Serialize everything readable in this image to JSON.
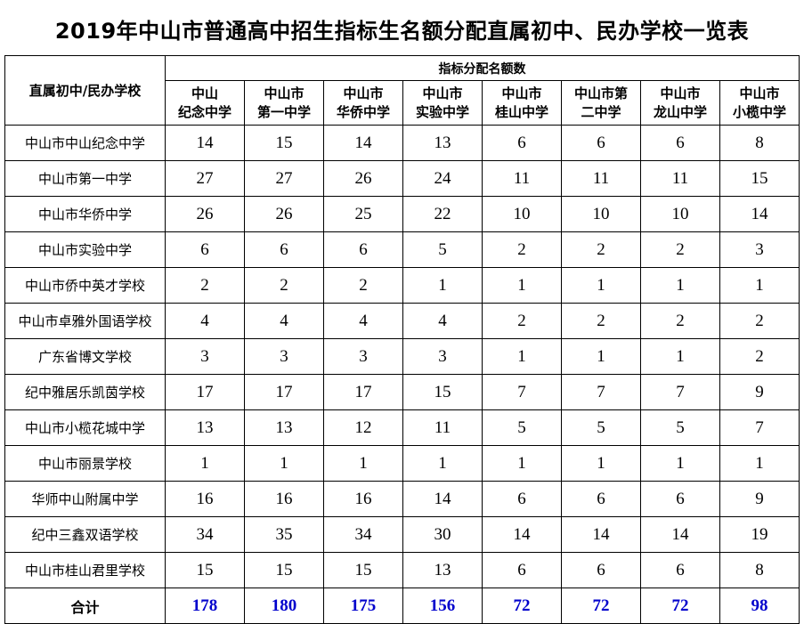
{
  "title": "2019年中山市普通高中招生指标生名额分配直属初中、民办学校一览表",
  "table": {
    "corner_header": "直属初中/民办学校",
    "group_header": "指标分配名额数",
    "columns": [
      {
        "line1": "中山",
        "line2": "纪念中学"
      },
      {
        "line1": "中山市",
        "line2": "第一中学"
      },
      {
        "line1": "中山市",
        "line2": "华侨中学"
      },
      {
        "line1": "中山市",
        "line2": "实验中学"
      },
      {
        "line1": "中山市",
        "line2": "桂山中学"
      },
      {
        "line1": "中山市第",
        "line2": "二中学"
      },
      {
        "line1": "中山市",
        "line2": "龙山中学"
      },
      {
        "line1": "中山市",
        "line2": "小榄中学"
      }
    ],
    "rows": [
      {
        "school": "中山市中山纪念中学",
        "values": [
          14,
          15,
          14,
          13,
          6,
          6,
          6,
          8
        ]
      },
      {
        "school": "中山市第一中学",
        "values": [
          27,
          27,
          26,
          24,
          11,
          11,
          11,
          15
        ]
      },
      {
        "school": "中山市华侨中学",
        "values": [
          26,
          26,
          25,
          22,
          10,
          10,
          10,
          14
        ]
      },
      {
        "school": "中山市实验中学",
        "values": [
          6,
          6,
          6,
          5,
          2,
          2,
          2,
          3
        ]
      },
      {
        "school": "中山市侨中英才学校",
        "values": [
          2,
          2,
          2,
          1,
          1,
          1,
          1,
          1
        ]
      },
      {
        "school": "中山市卓雅外国语学校",
        "values": [
          4,
          4,
          4,
          4,
          2,
          2,
          2,
          2
        ]
      },
      {
        "school": "广东省博文学校",
        "values": [
          3,
          3,
          3,
          3,
          1,
          1,
          1,
          2
        ]
      },
      {
        "school": "纪中雅居乐凯茵学校",
        "values": [
          17,
          17,
          17,
          15,
          7,
          7,
          7,
          9
        ]
      },
      {
        "school": "中山市小榄花城中学",
        "values": [
          13,
          13,
          12,
          11,
          5,
          5,
          5,
          7
        ]
      },
      {
        "school": "中山市丽景学校",
        "values": [
          1,
          1,
          1,
          1,
          1,
          1,
          1,
          1
        ]
      },
      {
        "school": "华师中山附属中学",
        "values": [
          16,
          16,
          16,
          14,
          6,
          6,
          6,
          9
        ]
      },
      {
        "school": "纪中三鑫双语学校",
        "values": [
          34,
          35,
          34,
          30,
          14,
          14,
          14,
          19
        ]
      },
      {
        "school": "中山市桂山君里学校",
        "values": [
          15,
          15,
          15,
          13,
          6,
          6,
          6,
          8
        ]
      }
    ],
    "total": {
      "label": "合计",
      "values": [
        178,
        180,
        175,
        156,
        72,
        72,
        72,
        98
      ],
      "value_color": "#0000cc"
    }
  }
}
